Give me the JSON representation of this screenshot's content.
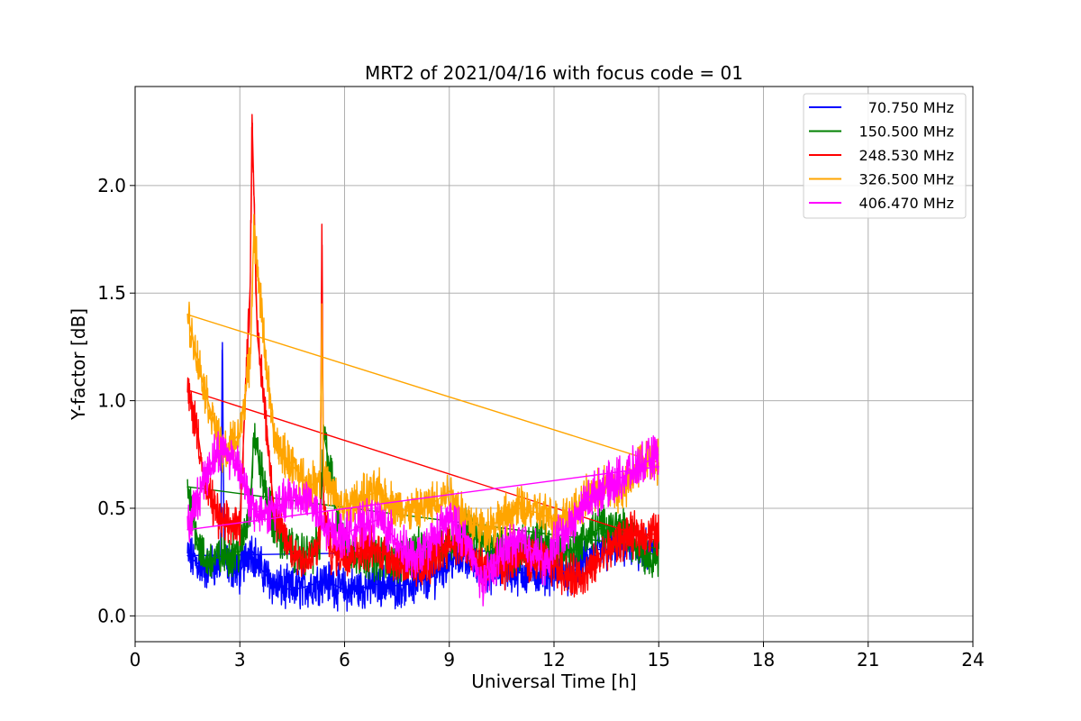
{
  "chart_data": {
    "type": "line",
    "title": "MRT2 of 2021/04/16 with focus code = 01",
    "xlabel": "Universal Time [h]",
    "ylabel": "Y-factor [dB]",
    "xlim": [
      0,
      24
    ],
    "ylim": [
      -0.12,
      2.46
    ],
    "xticks": [
      0,
      3,
      6,
      9,
      12,
      15,
      18,
      21,
      24
    ],
    "yticks": [
      0.0,
      0.5,
      1.0,
      1.5,
      2.0
    ],
    "xtick_labels": [
      "0",
      "3",
      "6",
      "9",
      "12",
      "15",
      "18",
      "21",
      "24"
    ],
    "ytick_labels": [
      "0.0",
      "0.5",
      "1.0",
      "1.5",
      "2.0"
    ],
    "grid": true,
    "legend_position": "top-right",
    "series": [
      {
        "name": " 70.750 MHz",
        "color": "#0000ff",
        "x": [
          1.5,
          2.0,
          2.45,
          2.5,
          2.55,
          3.0,
          3.3,
          3.6,
          4.0,
          4.5,
          5.0,
          5.4,
          6.0,
          6.5,
          7.0,
          7.5,
          8.0,
          8.5,
          9.0,
          9.5,
          10.0,
          10.5,
          11.0,
          11.5,
          12.0,
          12.5,
          13.0,
          13.5,
          14.0,
          14.5,
          15.0
        ],
        "y": [
          0.28,
          0.22,
          0.25,
          1.27,
          0.25,
          0.2,
          0.32,
          0.22,
          0.14,
          0.12,
          0.14,
          0.17,
          0.12,
          0.13,
          0.15,
          0.14,
          0.15,
          0.18,
          0.26,
          0.28,
          0.2,
          0.22,
          0.2,
          0.2,
          0.21,
          0.2,
          0.27,
          0.3,
          0.33,
          0.3,
          0.3
        ]
      },
      {
        "name": "150.500 MHz",
        "color": "#008000",
        "x": [
          1.5,
          1.8,
          2.0,
          2.5,
          3.0,
          3.3,
          3.4,
          3.7,
          4.0,
          4.5,
          5.0,
          5.3,
          5.4,
          6.0,
          6.5,
          7.0,
          7.5,
          8.0,
          8.5,
          9.0,
          9.5,
          10.0,
          10.5,
          11.0,
          11.5,
          12.0,
          12.5,
          13.0,
          13.5,
          14.0,
          14.5,
          15.0
        ],
        "y": [
          0.6,
          0.35,
          0.25,
          0.28,
          0.3,
          0.5,
          0.85,
          0.6,
          0.4,
          0.3,
          0.28,
          0.35,
          0.85,
          0.3,
          0.28,
          0.27,
          0.25,
          0.3,
          0.3,
          0.34,
          0.42,
          0.33,
          0.3,
          0.3,
          0.35,
          0.32,
          0.3,
          0.38,
          0.42,
          0.4,
          0.3,
          0.28
        ]
      },
      {
        "name": "248.530 MHz",
        "color": "#ff0000",
        "x": [
          1.5,
          1.8,
          2.0,
          2.5,
          3.0,
          3.3,
          3.35,
          3.5,
          3.7,
          4.0,
          4.5,
          5.0,
          5.3,
          5.35,
          5.4,
          5.6,
          6.0,
          6.5,
          7.0,
          7.5,
          8.0,
          8.5,
          9.0,
          9.5,
          10.0,
          10.5,
          11.0,
          11.5,
          12.0,
          12.5,
          13.0,
          13.5,
          14.0,
          14.5,
          15.0
        ],
        "y": [
          1.05,
          0.85,
          0.6,
          0.42,
          0.42,
          1.55,
          2.33,
          1.3,
          1.0,
          0.45,
          0.3,
          0.25,
          0.35,
          1.82,
          0.5,
          0.3,
          0.28,
          0.32,
          0.3,
          0.26,
          0.2,
          0.25,
          0.35,
          0.3,
          0.22,
          0.22,
          0.28,
          0.25,
          0.24,
          0.18,
          0.2,
          0.3,
          0.36,
          0.38,
          0.38
        ]
      },
      {
        "name": "326.500 MHz",
        "color": "#ffa500",
        "x": [
          1.5,
          1.7,
          2.0,
          2.5,
          3.0,
          3.3,
          3.4,
          3.6,
          3.8,
          4.0,
          4.5,
          5.0,
          5.3,
          5.35,
          5.4,
          5.7,
          6.0,
          6.5,
          7.0,
          7.5,
          8.0,
          8.5,
          9.0,
          9.5,
          10.0,
          10.5,
          11.0,
          11.5,
          12.0,
          12.5,
          13.0,
          13.5,
          14.0,
          14.5,
          15.0
        ],
        "y": [
          1.4,
          1.25,
          1.05,
          0.75,
          0.85,
          1.2,
          1.8,
          1.45,
          1.1,
          0.8,
          0.7,
          0.6,
          0.65,
          1.45,
          0.65,
          0.55,
          0.5,
          0.55,
          0.58,
          0.5,
          0.48,
          0.52,
          0.58,
          0.45,
          0.4,
          0.45,
          0.5,
          0.48,
          0.45,
          0.48,
          0.55,
          0.6,
          0.58,
          0.72,
          0.72
        ]
      },
      {
        "name": "406.470 MHz",
        "color": "#ff00ff",
        "x": [
          1.5,
          1.8,
          2.0,
          2.3,
          2.5,
          3.0,
          3.3,
          3.6,
          4.0,
          4.5,
          5.0,
          5.4,
          6.0,
          6.5,
          7.0,
          7.5,
          8.0,
          8.5,
          9.0,
          9.5,
          9.8,
          10.0,
          10.5,
          11.0,
          11.5,
          11.8,
          12.0,
          12.5,
          13.0,
          13.5,
          14.0,
          14.5,
          15.0
        ],
        "y": [
          0.4,
          0.55,
          0.65,
          0.75,
          0.78,
          0.7,
          0.5,
          0.48,
          0.5,
          0.55,
          0.55,
          0.4,
          0.38,
          0.42,
          0.45,
          0.35,
          0.25,
          0.35,
          0.45,
          0.35,
          0.2,
          0.15,
          0.3,
          0.35,
          0.3,
          0.22,
          0.35,
          0.42,
          0.55,
          0.6,
          0.65,
          0.7,
          0.75
        ]
      }
    ]
  }
}
